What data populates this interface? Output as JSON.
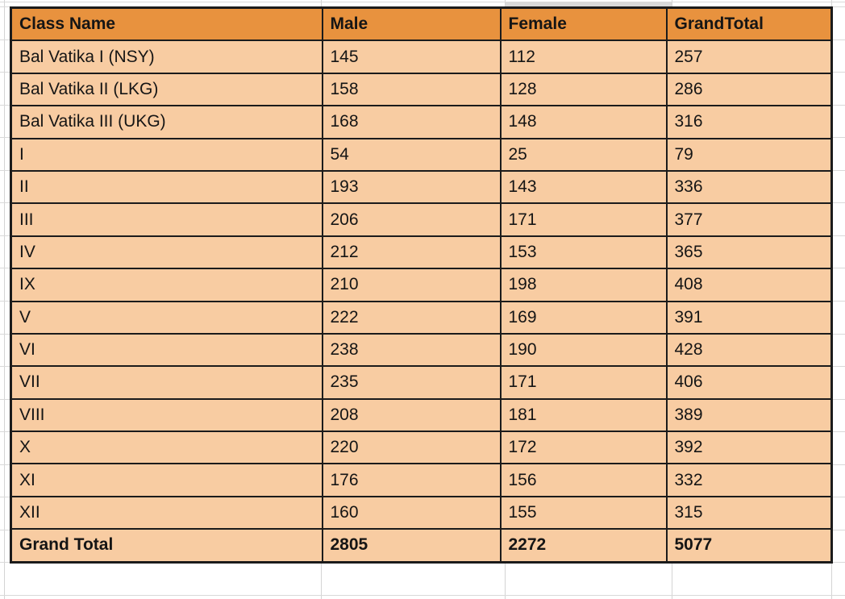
{
  "colors": {
    "header_bg": "#e8923e",
    "row_bg": "#f8cca2",
    "border": "#1b1b1b",
    "gridline": "#d4d4d4",
    "column_shade": "#d9d9d9"
  },
  "table": {
    "columns": [
      "Class Name",
      "Male",
      "Female",
      "GrandTotal"
    ],
    "rows": [
      {
        "class": "Bal Vatika I (NSY)",
        "male": "145",
        "female": "112",
        "total": "257"
      },
      {
        "class": "Bal Vatika II (LKG)",
        "male": "158",
        "female": "128",
        "total": "286"
      },
      {
        "class": "Bal Vatika III (UKG)",
        "male": "168",
        "female": "148",
        "total": "316"
      },
      {
        "class": "I",
        "male": "54",
        "female": "25",
        "total": "79"
      },
      {
        "class": "II",
        "male": "193",
        "female": "143",
        "total": "336"
      },
      {
        "class": "III",
        "male": "206",
        "female": "171",
        "total": "377"
      },
      {
        "class": "IV",
        "male": "212",
        "female": "153",
        "total": "365"
      },
      {
        "class": "IX",
        "male": "210",
        "female": "198",
        "total": "408"
      },
      {
        "class": "V",
        "male": "222",
        "female": "169",
        "total": "391"
      },
      {
        "class": "VI",
        "male": "238",
        "female": "190",
        "total": "428"
      },
      {
        "class": "VII",
        "male": "235",
        "female": "171",
        "total": "406"
      },
      {
        "class": "VIII",
        "male": "208",
        "female": "181",
        "total": "389"
      },
      {
        "class": "X",
        "male": "220",
        "female": "172",
        "total": "392"
      },
      {
        "class": "XI",
        "male": "176",
        "female": "156",
        "total": "332"
      },
      {
        "class": "XII",
        "male": "160",
        "female": "155",
        "total": "315"
      }
    ],
    "grand_total": {
      "label": "Grand Total",
      "male": "2805",
      "female": "2272",
      "total": "5077"
    }
  }
}
